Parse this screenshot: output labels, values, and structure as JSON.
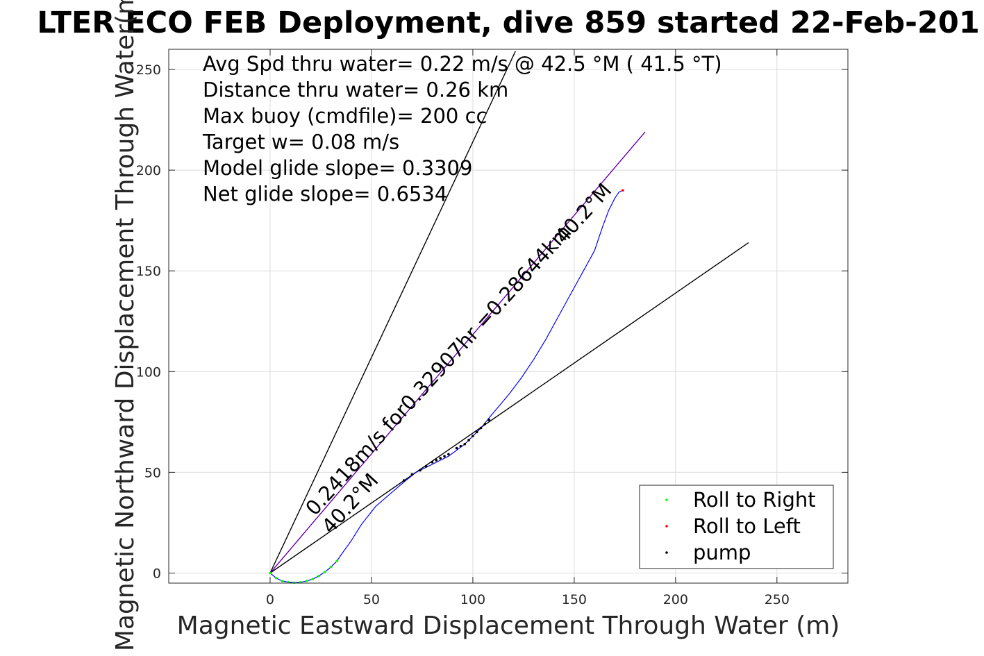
{
  "chart_data": {
    "type": "scatter",
    "title": "LTER ECO FEB Deployment, dive 859 started 22-Feb-201",
    "xlabel": "Magnetic Eastward Displacement Through Water (m)",
    "ylabel": "Magnetic Northward Displacement Through Water(m)",
    "xlim": [
      -50,
      285
    ],
    "ylim": [
      -5,
      260
    ],
    "xticks": [
      0,
      50,
      100,
      150,
      200,
      250
    ],
    "yticks": [
      0,
      50,
      100,
      150,
      200,
      250
    ],
    "grid": true,
    "legend_position": "bottom-right",
    "info_lines": [
      "Avg Spd thru water=  0.22 m/s @  42.5 °M ( 41.5 °T)",
      "Distance thru water=  0.26 km",
      "Max buoy (cmdfile)= 200 cc",
      "Target w= 0.08 m/s",
      "Model glide slope= 0.3309",
      "Net glide slope= 0.6534"
    ],
    "annotations": [
      {
        "text": "0.2418m/s for0.32907hr =0.28644km",
        "x": 22,
        "y": 28,
        "angle_deg": 47.8
      },
      {
        "text": "40.2°M",
        "x": 30,
        "y": 19,
        "angle_deg": 47.8
      },
      {
        "text": "40.2°M",
        "x": 145,
        "y": 163,
        "angle_deg": 47.8
      }
    ],
    "reference_lines": [
      {
        "name": "bound-left",
        "color": "#000000",
        "x": [
          0,
          121
        ],
        "y": [
          0,
          259
        ]
      },
      {
        "name": "bound-right",
        "color": "#000000",
        "x": [
          0,
          236
        ],
        "y": [
          0,
          164
        ]
      },
      {
        "name": "heading",
        "color": "#ff00ff",
        "x": [
          0,
          185
        ],
        "y": [
          0,
          219
        ]
      },
      {
        "name": "heading-overlay",
        "color": "#000080",
        "x": [
          0,
          185
        ],
        "y": [
          0,
          219
        ]
      }
    ],
    "track": {
      "color": "#0000ff",
      "x": [
        0,
        3,
        6,
        9,
        12,
        15,
        18,
        21,
        24,
        27,
        30,
        33,
        35,
        40,
        45,
        52,
        60,
        67,
        72,
        78,
        84,
        88,
        92,
        96,
        100,
        104,
        108,
        113,
        118,
        124,
        130,
        136,
        142,
        148,
        154,
        160,
        164,
        167,
        170,
        172,
        174
      ],
      "y": [
        0,
        -2.5,
        -4,
        -4.5,
        -4.8,
        -4.6,
        -4,
        -3,
        -1.5,
        0.5,
        3,
        6,
        9,
        16,
        24,
        33,
        40,
        46,
        50,
        53,
        56,
        58,
        61,
        64,
        68,
        72,
        77,
        83,
        89,
        97,
        106,
        116,
        127,
        138,
        149,
        160,
        172,
        180,
        186,
        189,
        190
      ]
    },
    "series": [
      {
        "name": "Roll to Right",
        "color": "#00ff00",
        "x": [
          0,
          3,
          6,
          9,
          12,
          15,
          18,
          21,
          24,
          27,
          30,
          33
        ],
        "y": [
          0,
          -2.5,
          -4,
          -4.5,
          -4.8,
          -4.6,
          -4,
          -3,
          -1.5,
          0.5,
          3,
          6
        ]
      },
      {
        "name": "Roll to Left",
        "color": "#ff0000",
        "x": [
          174
        ],
        "y": [
          190
        ]
      },
      {
        "name": "pump",
        "color": "#000000",
        "x": [
          66,
          70,
          74,
          77,
          80,
          82,
          84,
          86,
          88,
          92,
          94,
          96,
          98,
          100,
          102,
          104,
          106,
          108
        ],
        "y": [
          46,
          49,
          51,
          53,
          55,
          56,
          57,
          58,
          59,
          62,
          63,
          64,
          66,
          68,
          70,
          72,
          74,
          76
        ]
      }
    ]
  }
}
